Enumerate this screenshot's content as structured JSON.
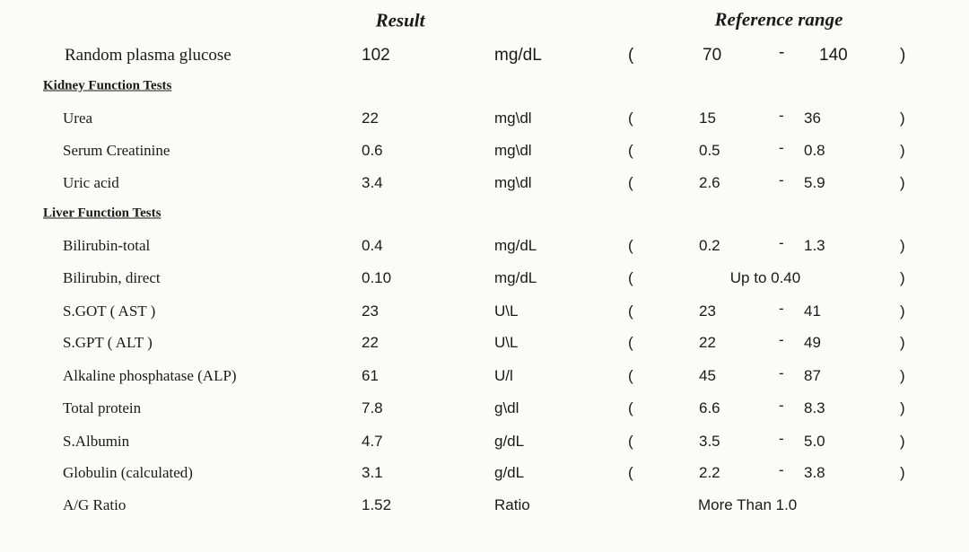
{
  "header": {
    "result": "Result",
    "reference": "Reference range"
  },
  "symbols": {
    "open": "(",
    "dash": "-",
    "close": ")"
  },
  "rows": [
    {
      "name": "Random plasma glucose",
      "result": "102",
      "unit": "mg/dL",
      "low": "70",
      "high": "140"
    },
    {
      "section": "Kidney Function Tests"
    },
    {
      "name": "Urea",
      "result": "22",
      "unit": "mg\\dl",
      "low": "15",
      "high": "36"
    },
    {
      "name": "Serum Creatinine",
      "result": "0.6",
      "unit": "mg\\dl",
      "low": "0.5",
      "high": "0.8"
    },
    {
      "name": "Uric acid",
      "result": "3.4",
      "unit": "mg\\dl",
      "low": "2.6",
      "high": "5.9"
    },
    {
      "section": "Liver Function Tests"
    },
    {
      "name": "Bilirubin-total",
      "result": "0.4",
      "unit": "mg/dL",
      "low": "0.2",
      "high": "1.3"
    },
    {
      "name": "Bilirubin, direct",
      "result": "0.10",
      "unit": "mg/dL",
      "range": "Up to 0.40"
    },
    {
      "name": "S.GOT ( AST )",
      "result": "23",
      "unit": "U\\L",
      "low": "23",
      "high": "41"
    },
    {
      "name": "S.GPT ( ALT )",
      "result": "22",
      "unit": "U\\L",
      "low": "22",
      "high": "49"
    },
    {
      "name": "Alkaline phosphatase (ALP)",
      "result": "61",
      "unit": "U/l",
      "low": "45",
      "high": "87"
    },
    {
      "name": "Total protein",
      "result": "7.8",
      "unit": "g\\dl",
      "low": "6.6",
      "high": "8.3"
    },
    {
      "name": "S.Albumin",
      "result": "4.7",
      "unit": "g/dL",
      "low": "3.5",
      "high": "5.0"
    },
    {
      "name": "Globulin (calculated)",
      "result": "3.1",
      "unit": "g/dL",
      "low": "2.2",
      "high": "3.8"
    },
    {
      "name": "A/G Ratio",
      "result": "1.52",
      "unit": "Ratio",
      "range": "More Than 1.0",
      "noparen": true
    }
  ]
}
